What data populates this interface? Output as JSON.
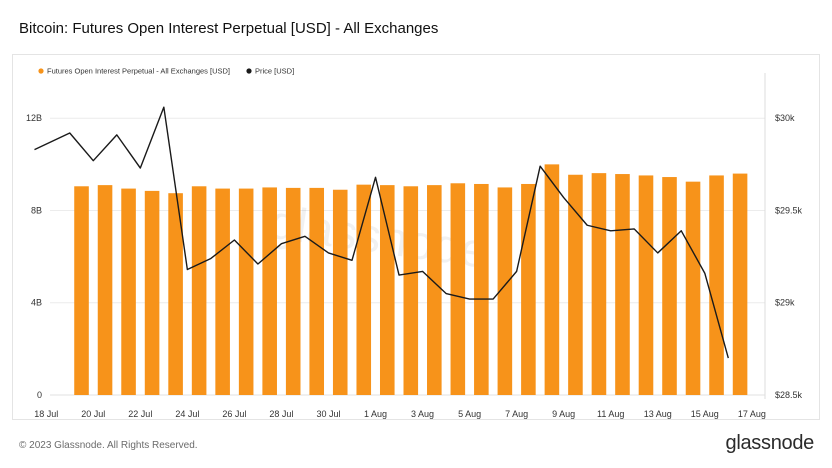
{
  "title": "Bitcoin: Futures Open Interest Perpetual [USD] - All Exchanges",
  "footer": {
    "copyright": "© 2023 Glassnode. All Rights Reserved.",
    "brand": "glassnode"
  },
  "watermark": "glassnode",
  "colors": {
    "bar": "#f7931a",
    "line": "#1a1a1a",
    "grid": "#ececec"
  },
  "chart_data": {
    "type": "bar",
    "legend_position": "top-left",
    "grid": true,
    "x_tick_labels": [
      "18 Jul",
      "20 Jul",
      "22 Jul",
      "24 Jul",
      "26 Jul",
      "28 Jul",
      "30 Jul",
      "1 Aug",
      "3 Aug",
      "5 Aug",
      "7 Aug",
      "9 Aug",
      "11 Aug",
      "13 Aug",
      "15 Aug",
      "17 Aug"
    ],
    "left_axis": {
      "ticks": [
        0,
        4,
        8,
        12
      ],
      "tick_labels": [
        "0",
        "4B",
        "8B",
        "12B"
      ],
      "ylim": [
        0,
        12
      ]
    },
    "right_axis": {
      "ticks": [
        28500,
        29000,
        29500,
        30000
      ],
      "tick_labels": [
        "$28.5k",
        "$29k",
        "$29.5k",
        "$30k"
      ],
      "ylim": [
        28500,
        30000
      ]
    },
    "series": [
      {
        "name": "Futures Open Interest Perpetual - All Exchanges [USD]",
        "type": "bar",
        "axis": "left",
        "x": [
          "19 Jul",
          "20 Jul",
          "21 Jul",
          "22 Jul",
          "23 Jul",
          "24 Jul",
          "25 Jul",
          "26 Jul",
          "27 Jul",
          "28 Jul",
          "29 Jul",
          "30 Jul",
          "31 Jul",
          "1 Aug",
          "2 Aug",
          "3 Aug",
          "4 Aug",
          "5 Aug",
          "6 Aug",
          "7 Aug",
          "8 Aug",
          "9 Aug",
          "10 Aug",
          "11 Aug",
          "12 Aug",
          "13 Aug",
          "14 Aug",
          "15 Aug",
          "16 Aug"
        ],
        "values": [
          9.05,
          9.1,
          8.95,
          8.85,
          8.75,
          9.05,
          8.95,
          8.95,
          9.0,
          8.98,
          8.98,
          8.9,
          9.12,
          9.1,
          9.05,
          9.1,
          9.18,
          9.15,
          9.0,
          9.15,
          10.0,
          9.55,
          9.62,
          9.58,
          9.52,
          9.45,
          9.25,
          9.52,
          9.6
        ]
      },
      {
        "name": "Price [USD]",
        "type": "line",
        "axis": "right",
        "x": [
          "18 Jul",
          "19 Jul",
          "20 Jul",
          "21 Jul",
          "22 Jul",
          "23 Jul",
          "24 Jul",
          "25 Jul",
          "26 Jul",
          "27 Jul",
          "28 Jul",
          "29 Jul",
          "30 Jul",
          "31 Jul",
          "1 Aug",
          "2 Aug",
          "3 Aug",
          "4 Aug",
          "5 Aug",
          "6 Aug",
          "7 Aug",
          "8 Aug",
          "9 Aug",
          "10 Aug",
          "11 Aug",
          "12 Aug",
          "13 Aug",
          "14 Aug",
          "15 Aug",
          "16 Aug"
        ],
        "values": [
          29830,
          29920,
          29770,
          29910,
          29730,
          30060,
          29180,
          29240,
          29340,
          29210,
          29320,
          29360,
          29270,
          29230,
          29680,
          29150,
          29170,
          29050,
          29020,
          29020,
          29170,
          29740,
          29570,
          29420,
          29390,
          29400,
          29270,
          29390,
          29160,
          28700
        ]
      }
    ]
  }
}
